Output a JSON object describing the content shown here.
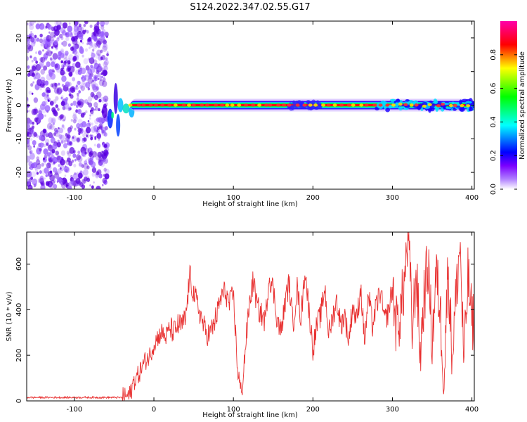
{
  "title": "S124.2022.347.02.55.G17",
  "chart_data": [
    {
      "type": "heatmap",
      "xlabel": "Height of straight line (km)",
      "ylabel": "Frequency (Hz)",
      "xlim": [
        -160,
        403
      ],
      "ylim": [
        -25,
        25
      ],
      "xticks": [
        -100,
        0,
        100,
        200,
        300,
        400
      ],
      "yticks": [
        -20,
        -10,
        0,
        10,
        20
      ],
      "colorbar": {
        "label": "Normalized spectral amplitude",
        "range": [
          0,
          1
        ],
        "ticks": [
          0.0,
          0.2,
          0.4,
          0.6,
          0.8
        ],
        "tick_labels": [
          "0.0",
          "0.2",
          "0.4",
          "0.6",
          "0.8"
        ],
        "colormap": [
          "#ffffff",
          "#7a00ff",
          "#0000ff",
          "#00ffff",
          "#00ff00",
          "#ffff00",
          "#ff0000",
          "#ff00aa"
        ]
      },
      "signal": {
        "noise_region_x": [
          -160,
          -65
        ],
        "onset_x": -60,
        "center_frequency": 0,
        "peak_band_x": [
          -30,
          403
        ]
      },
      "grid": false
    },
    {
      "type": "line",
      "xlabel": "Height of straight line (km)",
      "ylabel": "SNR (10 * v/v)",
      "xlim": [
        -160,
        403
      ],
      "ylim": [
        0,
        740
      ],
      "xticks": [
        -100,
        0,
        100,
        200,
        300,
        400
      ],
      "yticks": [
        0,
        200,
        400,
        600
      ],
      "series_color": "#e83030",
      "x": [
        -160,
        -120,
        -80,
        -40,
        -30,
        -25,
        -20,
        -15,
        -10,
        -5,
        0,
        5,
        10,
        15,
        20,
        25,
        30,
        35,
        40,
        45,
        50,
        55,
        60,
        65,
        70,
        75,
        80,
        85,
        90,
        95,
        100,
        105,
        110,
        115,
        120,
        125,
        130,
        135,
        140,
        145,
        150,
        155,
        160,
        165,
        170,
        175,
        180,
        185,
        190,
        195,
        200,
        205,
        210,
        215,
        220,
        225,
        230,
        235,
        240,
        245,
        250,
        255,
        260,
        265,
        270,
        275,
        280,
        285,
        290,
        295,
        300,
        305,
        310,
        315,
        320,
        325,
        330,
        335,
        340,
        345,
        350,
        355,
        360,
        365,
        370,
        375,
        380,
        385,
        390,
        395,
        400
      ],
      "values": [
        15,
        15,
        15,
        15,
        25,
        90,
        110,
        150,
        180,
        200,
        250,
        280,
        300,
        280,
        320,
        300,
        330,
        330,
        360,
        550,
        470,
        420,
        360,
        300,
        290,
        330,
        390,
        460,
        480,
        420,
        470,
        150,
        20,
        230,
        420,
        530,
        410,
        380,
        350,
        550,
        490,
        360,
        300,
        430,
        520,
        330,
        500,
        360,
        580,
        400,
        230,
        330,
        380,
        500,
        290,
        370,
        440,
        330,
        380,
        260,
        420,
        350,
        500,
        260,
        460,
        330,
        420,
        480,
        350,
        390,
        500,
        330,
        380,
        520,
        740,
        300,
        580,
        200,
        470,
        600,
        250,
        560,
        400,
        100,
        600,
        200,
        450,
        700,
        150,
        550,
        350
      ]
    }
  ]
}
